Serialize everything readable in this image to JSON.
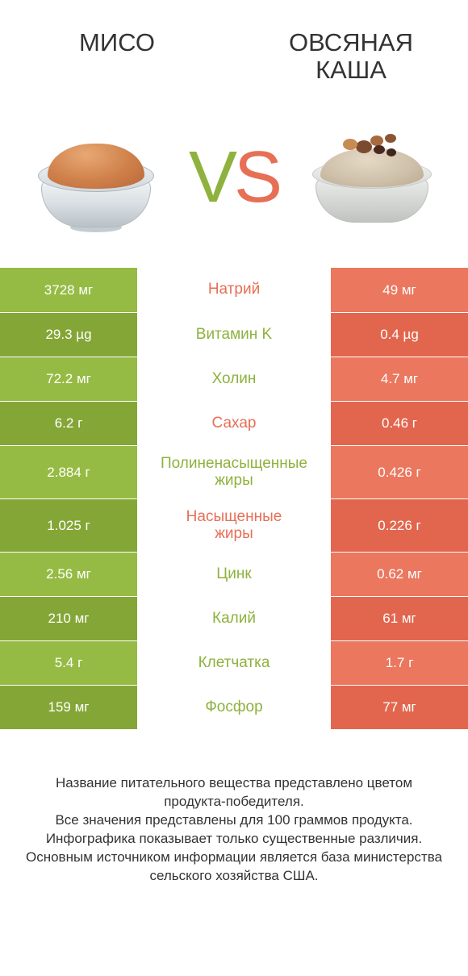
{
  "colors": {
    "left": "#8eb23d",
    "right": "#e76f56",
    "leftD": "#84a636",
    "leftL": "#96bb44",
    "rightD": "#e2664e",
    "rightL": "#eb775f"
  },
  "header": {
    "left_title": "МИСО",
    "right_title": "ОВСЯНАЯ\nКАША"
  },
  "rows": [
    {
      "label": "Натрий",
      "left": "3728 мг",
      "right": "49 мг",
      "winner": "right",
      "tall": false
    },
    {
      "label": "Витамин K",
      "left": "29.3 µg",
      "right": "0.4 µg",
      "winner": "left",
      "tall": false
    },
    {
      "label": "Холин",
      "left": "72.2 мг",
      "right": "4.7 мг",
      "winner": "left",
      "tall": false
    },
    {
      "label": "Сахар",
      "left": "6.2 г",
      "right": "0.46 г",
      "winner": "right",
      "tall": false
    },
    {
      "label": "Полиненасыщенные\nжиры",
      "left": "2.884 г",
      "right": "0.426 г",
      "winner": "left",
      "tall": true
    },
    {
      "label": "Насыщенные\nжиры",
      "left": "1.025 г",
      "right": "0.226 г",
      "winner": "right",
      "tall": true
    },
    {
      "label": "Цинк",
      "left": "2.56 мг",
      "right": "0.62 мг",
      "winner": "left",
      "tall": false
    },
    {
      "label": "Калий",
      "left": "210 мг",
      "right": "61 мг",
      "winner": "left",
      "tall": false
    },
    {
      "label": "Клетчатка",
      "left": "5.4 г",
      "right": "1.7 г",
      "winner": "left",
      "tall": false
    },
    {
      "label": "Фосфор",
      "left": "159 мг",
      "right": "77 мг",
      "winner": "left",
      "tall": false
    }
  ],
  "footer": "Название питательного вещества представлено цветом\nпродукта-победителя.\nВсе значения представлены для 100 граммов продукта.\nИнфографика показывает только существенные различия.\nОсновным источником информации является база министерства\nсельского хозяйства США."
}
